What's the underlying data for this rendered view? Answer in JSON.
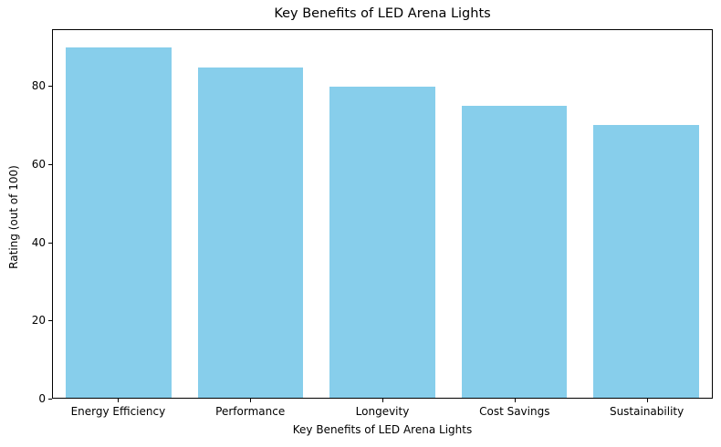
{
  "chart_data": {
    "type": "bar",
    "title": "Key Benefits of LED Arena Lights",
    "categories": [
      "Energy Efficiency",
      "Performance",
      "Longevity",
      "Cost Savings",
      "Sustainability"
    ],
    "values": [
      90,
      85,
      80,
      75,
      70
    ],
    "xlabel": "Key Benefits of LED Arena Lights",
    "ylabel": "Rating (out of 100)",
    "ylim": [
      0,
      94.5
    ],
    "yticks": [
      0,
      20,
      40,
      60,
      80
    ],
    "bar_color": "#87CEEB",
    "bar_width_fraction": 0.8,
    "grid": false,
    "legend_position": "none",
    "text_color": "#000000",
    "spine_color": "#000000",
    "background_color": "#ffffff"
  }
}
